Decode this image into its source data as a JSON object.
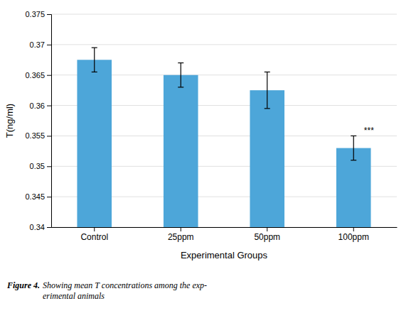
{
  "chart_data": {
    "type": "bar",
    "categories": [
      "Control",
      "25ppm",
      "50ppm",
      "100ppm"
    ],
    "values": [
      0.3675,
      0.365,
      0.3625,
      0.353
    ],
    "errors": [
      0.002,
      0.002,
      0.003,
      0.002
    ],
    "color": "#4da6d9",
    "ylim": [
      0.34,
      0.375
    ],
    "yticks": [
      0.34,
      0.345,
      0.35,
      0.355,
      0.36,
      0.365,
      0.37,
      0.375
    ],
    "ylabel": "T(ng/ml)",
    "xlabel": "Experimental Groups",
    "grid": true,
    "annotations": [
      {
        "text": "***",
        "category": "100ppm"
      }
    ],
    "caption": [
      "Figure 4.",
      " Showing mean T concentrations among the exp-\nerimental animals"
    ]
  }
}
